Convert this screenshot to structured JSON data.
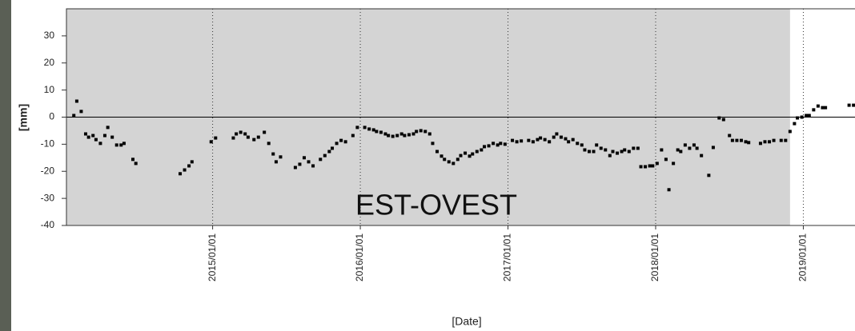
{
  "chart_data": {
    "type": "scatter",
    "xlabel": "[Date]",
    "ylabel": "[mm]",
    "annotation": "EST-OVEST",
    "color": "#000000",
    "shade_color": "#d4d4d4",
    "shade_until": 2018.91,
    "zero_line": true,
    "grid": "x-dotted",
    "xlim": [
      2014.01,
      2019.35
    ],
    "ylim": [
      -40,
      40
    ],
    "xticks": [
      {
        "value": 2015,
        "label": "2015/01/01"
      },
      {
        "value": 2016,
        "label": "2016/01/01"
      },
      {
        "value": 2017,
        "label": "2017/01/01"
      },
      {
        "value": 2018,
        "label": "2018/01/01"
      },
      {
        "value": 2019,
        "label": "2019/01/01"
      }
    ],
    "yticks": [
      -40,
      -30,
      -20,
      -10,
      0,
      10,
      20,
      30
    ],
    "x": [
      2014.06,
      2014.08,
      2014.11,
      2014.14,
      2014.16,
      2014.19,
      2014.21,
      2014.24,
      2014.27,
      2014.29,
      2014.32,
      2014.35,
      2014.38,
      2014.4,
      2014.46,
      2014.48,
      2014.78,
      2014.81,
      2014.84,
      2014.86,
      2014.99,
      2015.02,
      2015.14,
      2015.16,
      2015.19,
      2015.22,
      2015.24,
      2015.28,
      2015.31,
      2015.35,
      2015.38,
      2015.41,
      2015.43,
      2015.46,
      2015.56,
      2015.59,
      2015.62,
      2015.65,
      2015.68,
      2015.73,
      2015.76,
      2015.79,
      2015.81,
      2015.84,
      2015.87,
      2015.9,
      2015.95,
      2015.98,
      2016.03,
      2016.06,
      2016.09,
      2016.11,
      2016.14,
      2016.17,
      2016.19,
      2016.22,
      2016.25,
      2016.28,
      2016.3,
      2016.33,
      2016.36,
      2016.38,
      2016.41,
      2016.44,
      2016.47,
      2016.49,
      2016.52,
      2016.55,
      2016.57,
      2016.6,
      2016.63,
      2016.66,
      2016.68,
      2016.71,
      2016.74,
      2016.76,
      2016.79,
      2016.82,
      2016.84,
      2016.87,
      2016.9,
      2016.93,
      2016.95,
      2016.98,
      2017.03,
      2017.06,
      2017.09,
      2017.14,
      2017.17,
      2017.2,
      2017.22,
      2017.25,
      2017.28,
      2017.31,
      2017.33,
      2017.36,
      2017.39,
      2017.41,
      2017.44,
      2017.47,
      2017.5,
      2017.52,
      2017.55,
      2017.58,
      2017.6,
      2017.63,
      2017.66,
      2017.69,
      2017.71,
      2017.74,
      2017.77,
      2017.79,
      2017.82,
      2017.85,
      2017.88,
      2017.9,
      2017.93,
      2017.96,
      2017.98,
      2018.01,
      2018.04,
      2018.07,
      2018.09,
      2018.12,
      2018.15,
      2018.17,
      2018.2,
      2018.23,
      2018.26,
      2018.28,
      2018.31,
      2018.36,
      2018.39,
      2018.43,
      2018.46,
      2018.5,
      2018.52,
      2018.55,
      2018.58,
      2018.61,
      2018.63,
      2018.71,
      2018.74,
      2018.77,
      2018.8,
      2018.85,
      2018.88,
      2018.91,
      2018.94,
      2018.96,
      2018.99,
      2019.02,
      2019.04,
      2019.07,
      2019.1,
      2019.13,
      2019.15,
      2019.31,
      2019.34
    ],
    "values": [
      0.6,
      5.9,
      2.1,
      -6.2,
      -7.4,
      -6.8,
      -8.3,
      -9.7,
      -6.8,
      -3.8,
      -7.4,
      -10.3,
      -10.3,
      -9.7,
      -15.6,
      -17.1,
      -20.9,
      -19.5,
      -18.0,
      -16.5,
      -9.1,
      -7.7,
      -7.7,
      -6.2,
      -5.6,
      -6.2,
      -7.4,
      -8.3,
      -7.4,
      -5.6,
      -9.7,
      -13.6,
      -16.5,
      -14.7,
      -18.6,
      -17.4,
      -15.0,
      -16.5,
      -18.0,
      -15.6,
      -14.2,
      -12.7,
      -11.5,
      -9.7,
      -8.6,
      -9.1,
      -6.8,
      -3.8,
      -3.8,
      -4.4,
      -4.7,
      -5.3,
      -5.6,
      -6.2,
      -6.8,
      -7.1,
      -6.8,
      -6.2,
      -6.8,
      -6.5,
      -6.2,
      -5.3,
      -5.0,
      -5.3,
      -6.2,
      -9.7,
      -12.7,
      -14.4,
      -15.6,
      -16.5,
      -17.1,
      -15.6,
      -14.2,
      -13.3,
      -14.4,
      -13.6,
      -12.7,
      -12.1,
      -10.9,
      -10.6,
      -9.7,
      -10.3,
      -9.7,
      -10.0,
      -8.6,
      -9.1,
      -8.8,
      -8.6,
      -9.1,
      -8.3,
      -7.7,
      -8.3,
      -9.1,
      -7.4,
      -6.2,
      -7.4,
      -8.0,
      -9.1,
      -8.3,
      -9.7,
      -10.3,
      -12.1,
      -12.7,
      -12.7,
      -10.3,
      -11.5,
      -12.1,
      -14.2,
      -12.7,
      -13.3,
      -12.7,
      -12.1,
      -12.7,
      -11.5,
      -11.5,
      -18.3,
      -18.3,
      -18.0,
      -18.0,
      -17.1,
      -12.1,
      -15.6,
      -26.8,
      -17.1,
      -12.1,
      -12.7,
      -10.3,
      -11.5,
      -10.3,
      -11.5,
      -14.2,
      -21.5,
      -11.2,
      -0.3,
      -0.9,
      -6.8,
      -8.6,
      -8.6,
      -8.6,
      -9.1,
      -9.4,
      -9.7,
      -9.1,
      -9.1,
      -8.6,
      -8.6,
      -8.6,
      -5.3,
      -2.4,
      -0.3,
      0,
      0.6,
      0.6,
      2.7,
      4.1,
      3.5,
      3.5,
      4.4,
      4.4
    ]
  }
}
